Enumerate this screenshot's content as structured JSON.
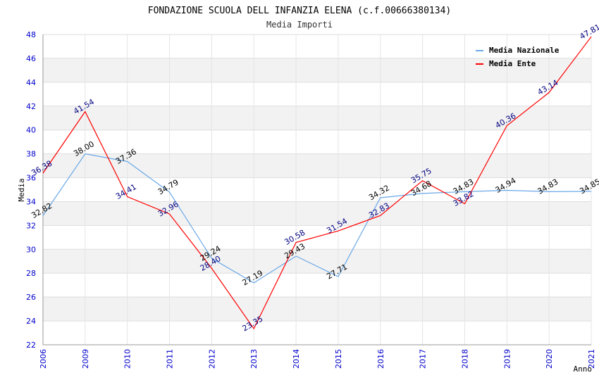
{
  "chart_data": {
    "type": "line",
    "title": "FONDAZIONE SCUOLA DELL INFANZIA ELENA (c.f.00666380134)",
    "subtitle": "Media Importi",
    "xlabel": "Anno",
    "ylabel": "Media",
    "ylim": [
      22,
      48
    ],
    "ytick_step": 2,
    "categories": [
      "2006",
      "2009",
      "2010",
      "2011",
      "2012",
      "2013",
      "2014",
      "2015",
      "2016",
      "2017",
      "2018",
      "2019",
      "2020",
      "2021"
    ],
    "series": [
      {
        "name": "Media Nazionale",
        "color": "#6aa8e8",
        "values": [
          32.82,
          38.0,
          37.36,
          34.79,
          29.24,
          27.19,
          29.43,
          27.71,
          34.32,
          34.68,
          34.83,
          34.94,
          34.83,
          34.85
        ],
        "labels": [
          "32.82",
          "38.00",
          "37.36",
          "34.79",
          "29.24",
          "27.19",
          "29.43",
          "27.71",
          "34.32",
          "34.68",
          "34.83",
          "34.94",
          "34.83",
          "34.85"
        ]
      },
      {
        "name": "Media Ente",
        "color": "#ff0000",
        "values": [
          36.38,
          41.54,
          34.41,
          32.96,
          28.4,
          23.35,
          30.58,
          31.54,
          32.83,
          35.75,
          33.82,
          40.36,
          43.14,
          47.81
        ],
        "labels": [
          "36.38",
          "41.54",
          "34.41",
          "32.96",
          "28.40",
          "23.35",
          "30.58",
          "31.54",
          "32.83",
          "35.75",
          "33.82",
          "40.36",
          "43.14",
          "47.81"
        ]
      }
    ],
    "grid": true,
    "legend": "top-right"
  }
}
